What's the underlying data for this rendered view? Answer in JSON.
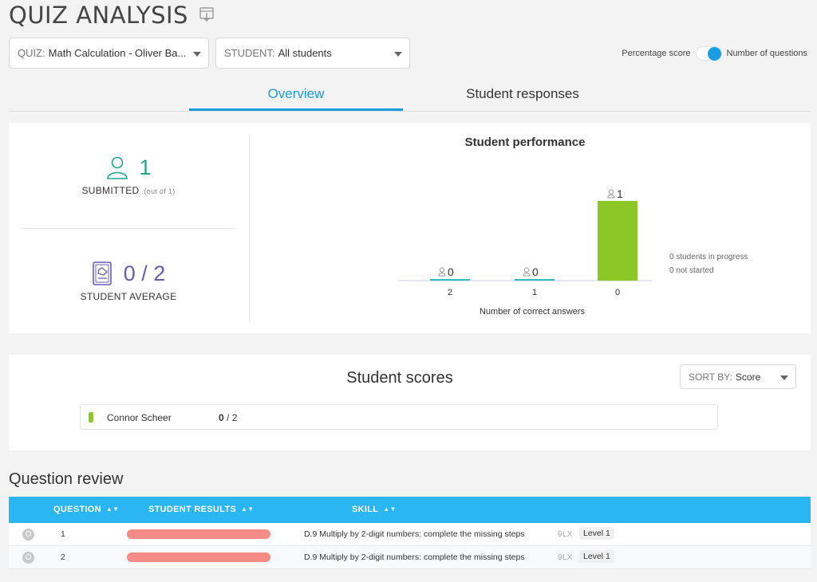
{
  "page": {
    "title": "QUIZ ANALYSIS"
  },
  "filters": {
    "quiz_label": "QUIZ:",
    "quiz_value": "Math Calculation - Oliver Ba...",
    "student_label": "STUDENT:",
    "student_value": "All students"
  },
  "score_toggle": {
    "left_label": "Percentage score",
    "right_label": "Number of questions",
    "selected": "Number of questions"
  },
  "tabs": [
    {
      "label": "Overview",
      "active": true
    },
    {
      "label": "Student responses",
      "active": false
    }
  ],
  "overview": {
    "submitted": {
      "value": "1",
      "label": "SUBMITTED",
      "note": "(out of 1)"
    },
    "average": {
      "value": "0 / 2",
      "label": "STUDENT AVERAGE"
    },
    "in_progress": "0 students in progress",
    "not_started": "0 not started"
  },
  "chart_data": {
    "type": "bar",
    "title": "Student performance",
    "xlabel": "Number of correct answers",
    "ylabel": "",
    "categories": [
      "2",
      "1",
      "0"
    ],
    "values": [
      0,
      0,
      1
    ],
    "data_labels": [
      "0",
      "0",
      "1"
    ],
    "ylim": [
      0,
      1
    ],
    "colors": {
      "nonzero": "#8cc627",
      "zero": "#2bbfc0"
    },
    "legend": "none"
  },
  "scores": {
    "title": "Student scores",
    "sort_label": "SORT BY:",
    "sort_value": "Score",
    "rows": [
      {
        "name": "Connor Scheer",
        "score": "0",
        "total": "/ 2"
      }
    ]
  },
  "question_review": {
    "title": "Question review",
    "columns": [
      "QUESTION",
      "STUDENT RESULTS",
      "SKILL"
    ],
    "rows": [
      {
        "number": "1",
        "result_fraction_incorrect": 1,
        "skill": "D.9 Multiply by 2-digit numbers: complete the missing steps",
        "code": "9LX",
        "level": "Level 1"
      },
      {
        "number": "2",
        "result_fraction_incorrect": 1,
        "skill": "D.9 Multiply by 2-digit numbers: complete the missing steps",
        "code": "9LX",
        "level": "Level 1"
      }
    ]
  }
}
